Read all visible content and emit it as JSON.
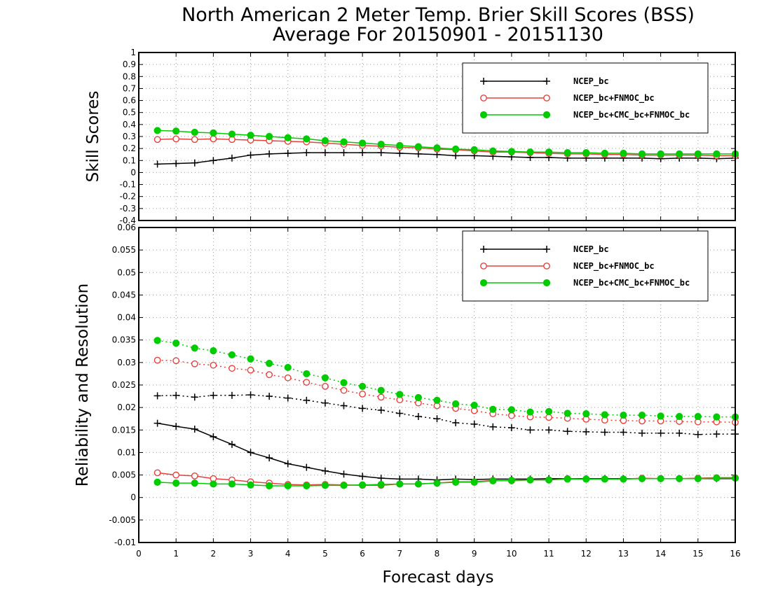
{
  "colors": {
    "ncep": "#000000",
    "fnmoc": "#e8403c",
    "cmc": "#00cc00",
    "grid": "#9a9a9a"
  },
  "chart_data": {
    "type": "line",
    "title": "North American 2 Meter Temp. Brier Skill Scores (BSS)",
    "subtitle": "Average For 20150901 - 20151130",
    "xlabel": "Forecast days",
    "xlim": [
      0,
      16
    ],
    "xticks": [
      "0",
      "1",
      "2",
      "3",
      "4",
      "5",
      "6",
      "7",
      "8",
      "9",
      "10",
      "11",
      "12",
      "13",
      "14",
      "15",
      "16"
    ],
    "x": [
      0.5,
      1,
      1.5,
      2,
      2.5,
      3,
      3.5,
      4,
      4.5,
      5,
      5.5,
      6,
      6.5,
      7,
      7.5,
      8,
      8.5,
      9,
      9.5,
      10,
      10.5,
      11,
      11.5,
      12,
      12.5,
      13,
      13.5,
      14,
      14.5,
      15,
      15.5,
      16
    ],
    "legend_location": "top-right",
    "legend_entries": [
      "NCEP_bc",
      "NCEP_bc+FNMOC_bc",
      "NCEP_bc+CMC_bc+FNMOC_bc"
    ],
    "panels": [
      {
        "ylabel": "Skill Scores",
        "ylim": [
          -0.4,
          1
        ],
        "yticks": [
          "1",
          "0.9",
          "0.8",
          "0.7",
          "0.6",
          "0.5",
          "0.4",
          "0.3",
          "0.2",
          "0.1",
          "0",
          "-0.1",
          "-0.2",
          "-0.3",
          "-0.4"
        ],
        "grid": true,
        "series": [
          {
            "name": "NCEP_bc",
            "style": "solid",
            "marker": "plus",
            "values": [
              0.07,
              0.075,
              0.08,
              0.1,
              0.12,
              0.145,
              0.155,
              0.16,
              0.165,
              0.165,
              0.165,
              0.165,
              0.165,
              0.16,
              0.155,
              0.15,
              0.14,
              0.14,
              0.135,
              0.13,
              0.125,
              0.125,
              0.12,
              0.12,
              0.12,
              0.12,
              0.12,
              0.115,
              0.12,
              0.12,
              0.115,
              0.12
            ]
          },
          {
            "name": "NCEP_bc+FNMOC_bc",
            "style": "solid",
            "marker": "open-circle",
            "values": [
              0.275,
              0.28,
              0.275,
              0.28,
              0.275,
              0.27,
              0.265,
              0.26,
              0.255,
              0.245,
              0.235,
              0.225,
              0.22,
              0.21,
              0.205,
              0.195,
              0.19,
              0.18,
              0.17,
              0.17,
              0.165,
              0.16,
              0.155,
              0.155,
              0.15,
              0.15,
              0.145,
              0.145,
              0.145,
              0.145,
              0.14,
              0.14
            ]
          },
          {
            "name": "NCEP_bc+CMC_bc+FNMOC_bc",
            "style": "solid",
            "marker": "filled-circle",
            "values": [
              0.35,
              0.345,
              0.335,
              0.33,
              0.32,
              0.31,
              0.3,
              0.29,
              0.28,
              0.265,
              0.255,
              0.245,
              0.235,
              0.225,
              0.215,
              0.205,
              0.195,
              0.19,
              0.18,
              0.175,
              0.17,
              0.17,
              0.165,
              0.165,
              0.16,
              0.16,
              0.155,
              0.155,
              0.155,
              0.155,
              0.155,
              0.155
            ]
          }
        ]
      },
      {
        "ylabel": "Reliability and Resolution",
        "ylim": [
          -0.01,
          0.06
        ],
        "yticks": [
          "0.06",
          "0.055",
          "0.05",
          "0.045",
          "0.04",
          "0.035",
          "0.03",
          "0.025",
          "0.02",
          "0.015",
          "0.01",
          "0.005",
          "0",
          "-0.005",
          "-0.01"
        ],
        "grid": true,
        "series": [
          {
            "name": "NCEP_bc",
            "style": "solid",
            "marker": "plus",
            "values": [
              0.0165,
              0.0158,
              0.0152,
              0.0135,
              0.0118,
              0.01,
              0.0088,
              0.0075,
              0.0067,
              0.0059,
              0.0052,
              0.0047,
              0.0043,
              0.0041,
              0.0041,
              0.0039,
              0.0041,
              0.004,
              0.0041,
              0.0041,
              0.0041,
              0.0042,
              0.0042,
              0.0042,
              0.0042,
              0.0042,
              0.0042,
              0.0042,
              0.0042,
              0.0042,
              0.0042,
              0.0042
            ]
          },
          {
            "name": "NCEP_bc+FNMOC_bc",
            "style": "solid",
            "marker": "open-circle",
            "values": [
              0.0055,
              0.005,
              0.0048,
              0.0042,
              0.0039,
              0.0035,
              0.0032,
              0.0029,
              0.0028,
              0.0029,
              0.0028,
              0.0027,
              0.0027,
              0.003,
              0.003,
              0.0032,
              0.0035,
              0.0035,
              0.0038,
              0.0037,
              0.0039,
              0.0039,
              0.0042,
              0.0041,
              0.0041,
              0.0041,
              0.0043,
              0.0042,
              0.0042,
              0.0043,
              0.0044,
              0.0044
            ]
          },
          {
            "name": "NCEP_bc+CMC_bc+FNMOC_bc",
            "style": "solid",
            "marker": "filled-circle",
            "values": [
              0.0034,
              0.0032,
              0.0032,
              0.003,
              0.003,
              0.0028,
              0.0026,
              0.0026,
              0.0026,
              0.0027,
              0.0027,
              0.0028,
              0.0029,
              0.003,
              0.003,
              0.0032,
              0.0034,
              0.0034,
              0.0037,
              0.0038,
              0.0039,
              0.0039,
              0.0041,
              0.0041,
              0.0041,
              0.0041,
              0.0042,
              0.0042,
              0.0042,
              0.0042,
              0.0043,
              0.0043
            ]
          },
          {
            "name": "NCEP_bc",
            "style": "dotted",
            "marker": "plus",
            "values": [
              0.0226,
              0.0227,
              0.0223,
              0.0227,
              0.0227,
              0.0228,
              0.0225,
              0.0221,
              0.0216,
              0.021,
              0.0204,
              0.0198,
              0.0194,
              0.0187,
              0.018,
              0.0175,
              0.0166,
              0.0163,
              0.0157,
              0.0155,
              0.015,
              0.015,
              0.0147,
              0.0146,
              0.0145,
              0.0145,
              0.0143,
              0.0143,
              0.0143,
              0.014,
              0.0141,
              0.0141
            ]
          },
          {
            "name": "NCEP_bc+FNMOC_bc",
            "style": "dotted",
            "marker": "open-circle",
            "values": [
              0.0305,
              0.0304,
              0.0297,
              0.0294,
              0.0287,
              0.0283,
              0.0273,
              0.0266,
              0.0256,
              0.0247,
              0.0238,
              0.023,
              0.0223,
              0.0217,
              0.021,
              0.0204,
              0.0198,
              0.0193,
              0.0186,
              0.0182,
              0.0179,
              0.0178,
              0.0176,
              0.0174,
              0.0172,
              0.0171,
              0.017,
              0.017,
              0.0169,
              0.0168,
              0.0168,
              0.0167
            ]
          },
          {
            "name": "NCEP_bc+CMC_bc+FNMOC_bc",
            "style": "dotted",
            "marker": "filled-circle",
            "values": [
              0.0349,
              0.0343,
              0.0332,
              0.0326,
              0.0317,
              0.0308,
              0.0298,
              0.0289,
              0.0275,
              0.0266,
              0.0255,
              0.0247,
              0.0238,
              0.0229,
              0.0222,
              0.0216,
              0.0208,
              0.0205,
              0.0196,
              0.0195,
              0.019,
              0.0191,
              0.0187,
              0.0186,
              0.0184,
              0.0183,
              0.0183,
              0.0181,
              0.018,
              0.018,
              0.0179,
              0.0179
            ]
          }
        ]
      }
    ]
  }
}
